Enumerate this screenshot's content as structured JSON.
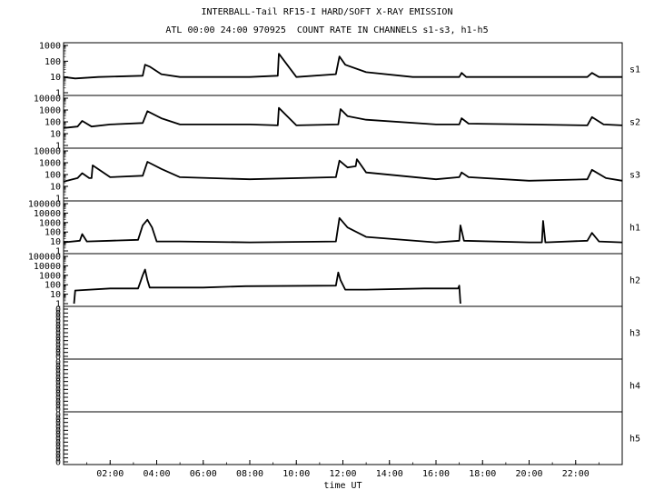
{
  "header": {
    "title": "INTERBALL-Tail RF15-I HARD/SOFT X-RAY EMISSION",
    "subtitle": "ATL 00:00 24:00 970925  COUNT RATE IN CHANNELS s1-s3, h1-h5"
  },
  "chart_data": {
    "type": "line",
    "xlabel": "time UT",
    "xlim": [
      0,
      24
    ],
    "x_ticks": [
      "02:00",
      "04:00",
      "06:00",
      "08:00",
      "10:00",
      "12:00",
      "14:00",
      "16:00",
      "18:00",
      "20:00",
      "22:00"
    ],
    "y_scale": "log",
    "grid": false,
    "panels": [
      {
        "name": "s1",
        "ytick_labels": [
          "1000",
          "100",
          "10",
          "1"
        ],
        "x": [
          0,
          0.5,
          1.5,
          3.4,
          3.5,
          3.7,
          4.2,
          5,
          6,
          8,
          9.2,
          9.25,
          10,
          11.7,
          11.85,
          12.1,
          13,
          15,
          17,
          17.1,
          17.3,
          20,
          22.5,
          22.7,
          23,
          24
        ],
        "y": [
          10,
          8,
          10,
          12,
          60,
          45,
          15,
          10,
          10,
          10,
          12,
          300,
          10,
          15,
          200,
          60,
          20,
          10,
          10,
          18,
          10,
          10,
          10,
          18,
          10,
          10
        ]
      },
      {
        "name": "s2",
        "ytick_labels": [
          "10000",
          "1000",
          "100",
          "10",
          "1"
        ],
        "x": [
          0,
          0.6,
          0.8,
          1.2,
          2,
          3.4,
          3.6,
          4.2,
          5,
          8,
          9.2,
          9.25,
          10,
          11.8,
          11.9,
          12.2,
          13,
          16,
          17,
          17.1,
          17.4,
          20,
          22.5,
          22.7,
          23.2,
          24
        ],
        "y": [
          30,
          40,
          120,
          40,
          60,
          80,
          800,
          200,
          60,
          60,
          50,
          1500,
          50,
          60,
          1200,
          300,
          150,
          60,
          60,
          200,
          70,
          60,
          50,
          250,
          60,
          50
        ]
      },
      {
        "name": "s3",
        "ytick_labels": [
          "10000",
          "1000",
          "100",
          "10",
          "1"
        ],
        "x": [
          0,
          0.6,
          0.8,
          1.1,
          1.2,
          1.25,
          2,
          3.4,
          3.6,
          4.2,
          5,
          8,
          11.7,
          11.85,
          12.2,
          12.55,
          12.6,
          13,
          16,
          17,
          17.1,
          17.4,
          20,
          22.5,
          22.7,
          23.3,
          24
        ],
        "y": [
          25,
          50,
          130,
          50,
          50,
          600,
          60,
          80,
          1200,
          300,
          60,
          40,
          60,
          1500,
          400,
          500,
          2000,
          150,
          40,
          60,
          150,
          60,
          30,
          40,
          250,
          50,
          30
        ]
      },
      {
        "name": "h1",
        "ytick_labels": [
          "100000",
          "10000",
          "1000",
          "100",
          "10",
          "1"
        ],
        "x": [
          0,
          0.7,
          0.8,
          1,
          2,
          3.2,
          3.4,
          3.6,
          3.8,
          4,
          5,
          8,
          11.7,
          11.85,
          12.2,
          13,
          16,
          17,
          17.05,
          17.2,
          20,
          20.55,
          20.6,
          20.7,
          22.5,
          22.7,
          23,
          24
        ],
        "y": [
          8,
          12,
          60,
          10,
          12,
          15,
          500,
          2000,
          300,
          10,
          10,
          8,
          10,
          3000,
          300,
          30,
          8,
          12,
          500,
          12,
          8,
          8,
          1500,
          8,
          12,
          80,
          10,
          8
        ]
      },
      {
        "name": "h2",
        "ytick_labels": [
          "100000",
          "10000",
          "1000",
          "100",
          "10",
          "1"
        ],
        "x": [
          0.45,
          0.5,
          0.55,
          2,
          3.2,
          3.3,
          3.4,
          3.5,
          3.6,
          3.7,
          6,
          7.8,
          11.7,
          11.8,
          11.9,
          12.1,
          13,
          15.5,
          16.95,
          17,
          17.05
        ],
        "y": [
          1,
          25,
          25,
          40,
          40,
          200,
          1000,
          4000,
          300,
          50,
          50,
          70,
          80,
          2000,
          300,
          30,
          30,
          40,
          40,
          80,
          1
        ]
      },
      {
        "name": "h3",
        "ytick_labels": [
          "0",
          "0",
          "0",
          "0",
          "0",
          "0",
          "0",
          "0",
          "0",
          "0",
          "0",
          "0",
          "0"
        ],
        "x": [],
        "y": []
      },
      {
        "name": "h4",
        "ytick_labels": [
          "0",
          "0",
          "0",
          "0",
          "0",
          "0",
          "0",
          "0",
          "0",
          "0",
          "0",
          "0",
          "0"
        ],
        "x": [],
        "y": []
      },
      {
        "name": "h5",
        "ytick_labels": [
          "0",
          "0",
          "0",
          "0",
          "0",
          "0",
          "0",
          "0",
          "0",
          "0",
          "0",
          "0",
          "0"
        ],
        "x": [],
        "y": []
      }
    ]
  }
}
